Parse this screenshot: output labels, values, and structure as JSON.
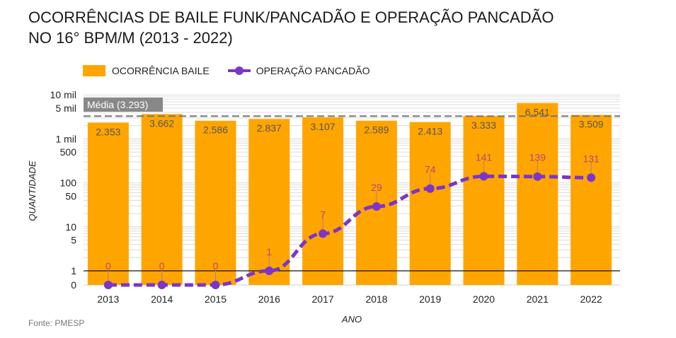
{
  "title_line1": "OCORRÊNCIAS DE BAILE FUNK/PANCADÃO E OPERAÇÃO PANCADÃO",
  "title_line2": "NO 16° BPM/M (2013 - 2022)",
  "source": "Fonte: PMESP",
  "colors": {
    "bar": "#FFA500",
    "line": "#7B35C9",
    "line_label": "#B5477A",
    "bar_label": "#555555",
    "average": "#777777"
  },
  "chart_data": {
    "type": "bar",
    "title": "OCORRÊNCIAS DE BAILE FUNK/PANCADÃO E OPERAÇÃO PANCADÃO NO 16° BPM/M (2013 - 2022)",
    "xlabel": "ANO",
    "ylabel": "QUANTIDADE",
    "yscale": "symlog",
    "ylim": [
      0,
      10000
    ],
    "grid": true,
    "legend_position": "top-left",
    "categories": [
      "2013",
      "2014",
      "2015",
      "2016",
      "2017",
      "2018",
      "2019",
      "2020",
      "2021",
      "2022"
    ],
    "y_ticks": [
      {
        "value": 0,
        "label": "0"
      },
      {
        "value": 1,
        "label": "1"
      },
      {
        "value": 5,
        "label": "5"
      },
      {
        "value": 10,
        "label": "10"
      },
      {
        "value": 50,
        "label": "50"
      },
      {
        "value": 100,
        "label": "100"
      },
      {
        "value": 500,
        "label": "500"
      },
      {
        "value": 1000,
        "label": "1 mil"
      },
      {
        "value": 5000,
        "label": "5 mil"
      },
      {
        "value": 10000,
        "label": "10 mil"
      }
    ],
    "series": [
      {
        "name": "OCORRÊNCIA BAILE",
        "type": "bar",
        "values": [
          2353,
          3662,
          2586,
          2837,
          3107,
          2589,
          2413,
          3333,
          6541,
          3509
        ],
        "labels": [
          "2.353",
          "3.662",
          "2.586",
          "2.837",
          "3.107",
          "2.589",
          "2.413",
          "3.333",
          "6.541",
          "3.509"
        ]
      },
      {
        "name": "OPERAÇÃO PANCADÃO",
        "type": "line",
        "style": "dashed",
        "values": [
          0,
          0,
          0,
          1,
          7,
          29,
          74,
          141,
          139,
          131
        ],
        "labels": [
          "0",
          "0",
          "0",
          "1",
          "7",
          "29",
          "74",
          "141",
          "139",
          "131"
        ]
      }
    ],
    "annotations": [
      {
        "type": "average-line",
        "value": 3293,
        "label": "Média (3.293)"
      },
      {
        "type": "reference-line",
        "value": 1
      }
    ]
  }
}
